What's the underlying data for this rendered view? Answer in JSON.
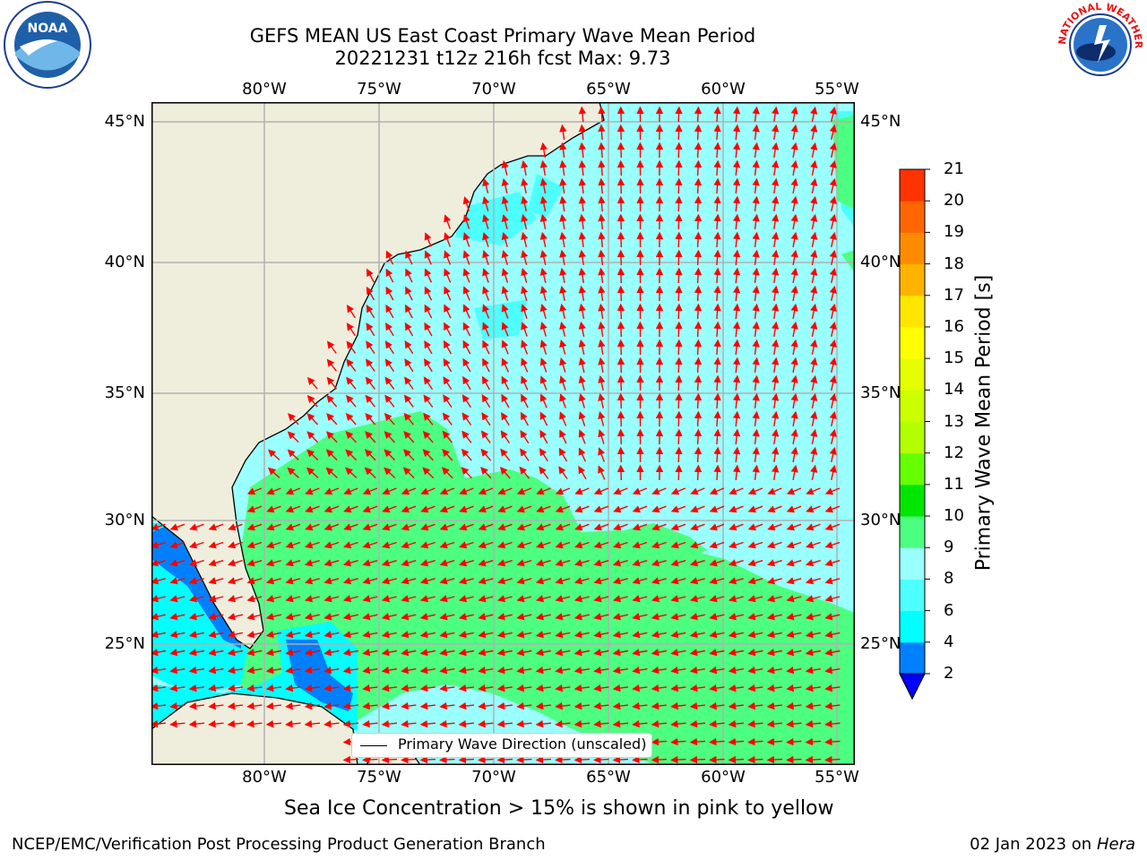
{
  "title": {
    "line1": "GEFS MEAN US East Coast Primary Wave Mean Period",
    "line2": "20221231 t12z 216h fcst   Max: 9.73"
  },
  "map": {
    "lon_ticks": [
      "80°W",
      "75°W",
      "70°W",
      "65°W",
      "60°W",
      "55°W"
    ],
    "lat_ticks": [
      "45°N",
      "40°N",
      "35°N",
      "30°N",
      "25°N"
    ],
    "colors": {
      "land": "#efeedd",
      "ocean_light_cyan": "#99ffff",
      "ocean_cyan": "#4dffff",
      "ocean_bright_cyan": "#00ffff",
      "ocean_blue": "#0080ff",
      "ocean_green": "#4dff80",
      "arrows": "#ff0000",
      "grid": "#b0b0b0"
    },
    "legend": "Primary Wave Direction (unscaled)"
  },
  "colorbar": {
    "label": "Primary Wave Mean Period [s]",
    "ticks": [
      "2",
      "4",
      "6",
      "8",
      "9",
      "10",
      "11",
      "12",
      "13",
      "14",
      "15",
      "16",
      "17",
      "18",
      "19",
      "20",
      "21"
    ],
    "colors": [
      "#0080ff",
      "#00ffff",
      "#4dffff",
      "#99ffff",
      "#4dff80",
      "#00e600",
      "#66ff00",
      "#b3ff00",
      "#ccff00",
      "#e6ff00",
      "#ffff00",
      "#ffe600",
      "#ffb300",
      "#ff8c00",
      "#ff6600",
      "#ff3300",
      "#ff0000"
    ],
    "extend_color": "#0000ff"
  },
  "footnote": "Sea Ice Concentration > 15% is shown in pink to yellow",
  "credit_left": "NCEP/EMC/Verification Post Processing Product Generation Branch",
  "credit_right_date": "02 Jan 2023 on",
  "credit_right_host": "Hera",
  "logos": {
    "noaa_text": "NOAA",
    "nws_text": "NATIONAL WEATHER SERVICE"
  }
}
